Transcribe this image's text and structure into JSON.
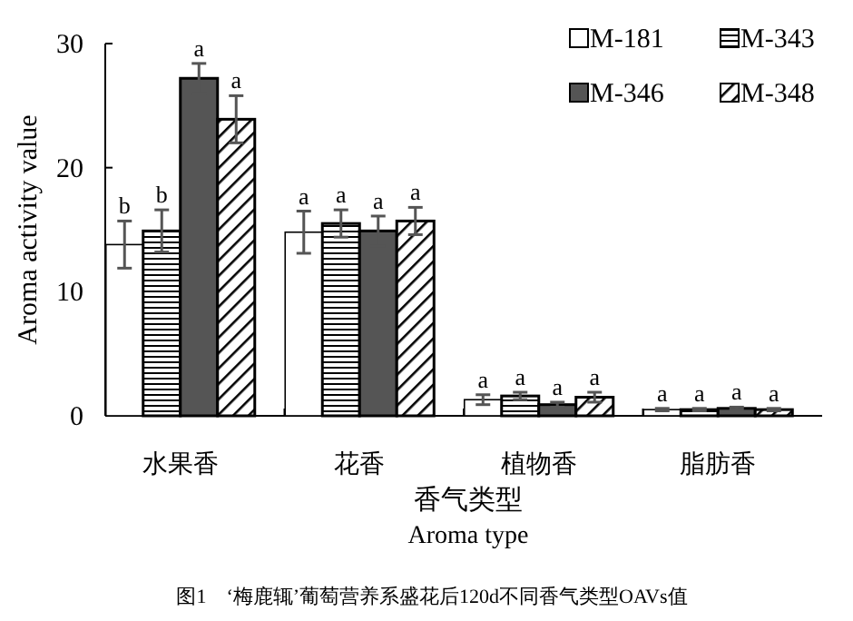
{
  "chart_data": {
    "type": "bar",
    "categories": [
      "水果香",
      "花香",
      "植物香",
      "脂肪香"
    ],
    "series": [
      {
        "name": "M-181",
        "color": "#ffffff",
        "values": [
          13.8,
          14.8,
          1.3,
          0.5
        ],
        "errors": [
          1.9,
          1.7,
          0.4,
          0.1
        ],
        "value_labels": [
          "b",
          "a",
          "a",
          "a"
        ]
      },
      {
        "name": "M-343",
        "color": "#000000",
        "values": [
          14.9,
          15.5,
          1.6,
          0.5
        ],
        "errors": [
          1.7,
          1.1,
          0.3,
          0.1
        ],
        "value_labels": [
          "b",
          "a",
          "a",
          "a"
        ]
      },
      {
        "name": "M-346",
        "color": "#555555",
        "values": [
          27.2,
          14.9,
          0.9,
          0.6
        ],
        "errors": [
          1.2,
          1.2,
          0.2,
          0.1
        ],
        "value_labels": [
          "a",
          "a",
          "a",
          "a"
        ]
      },
      {
        "name": "M-348",
        "color": "#000000",
        "values": [
          23.9,
          15.7,
          1.5,
          0.5
        ],
        "errors": [
          1.9,
          1.1,
          0.4,
          0.1
        ],
        "value_labels": [
          "a",
          "a",
          "a",
          "a"
        ]
      }
    ],
    "ylim": [
      0,
      30
    ],
    "yticks": [
      0,
      10,
      20,
      30
    ],
    "ylabel": "Aroma activity value",
    "xlabel": "香气类型\nAroma type",
    "legend": "top right",
    "grid": false,
    "annotations": [
      "图1　‘梅鹿辄’葡萄营养系盛花后120d不同香气类型OAVs值"
    ]
  }
}
